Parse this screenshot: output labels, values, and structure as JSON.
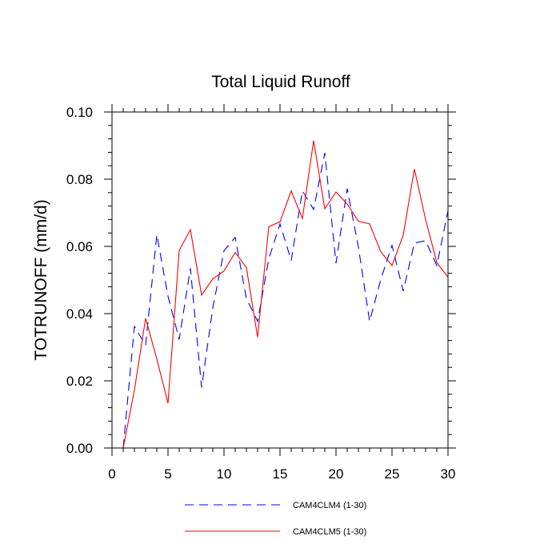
{
  "chart_data": {
    "type": "line",
    "title": "Total Liquid Runoff",
    "xlabel": "",
    "ylabel": "TOTRUNOFF  (mm/d)",
    "xlim": [
      0,
      30
    ],
    "ylim": [
      0.0,
      0.1
    ],
    "x_ticks": [
      0,
      5,
      10,
      15,
      20,
      25,
      30
    ],
    "x_tick_labels": [
      "0",
      "5",
      "10",
      "15",
      "20",
      "25",
      "30"
    ],
    "y_ticks": [
      0.0,
      0.02,
      0.04,
      0.06,
      0.08,
      0.1
    ],
    "y_tick_labels": [
      "0.00",
      "0.02",
      "0.04",
      "0.06",
      "0.08",
      "0.10"
    ],
    "grid": false,
    "legend_position": "bottom-center",
    "x": [
      1,
      2,
      3,
      4,
      5,
      6,
      7,
      8,
      9,
      10,
      11,
      12,
      13,
      14,
      15,
      16,
      17,
      18,
      19,
      20,
      21,
      22,
      23,
      24,
      25,
      26,
      27,
      28,
      29,
      30
    ],
    "series": [
      {
        "name": "CAM4CLM4 (1-30)",
        "color": "#0000ff",
        "dash": "dashed",
        "values": [
          0.0,
          0.0362,
          0.0306,
          0.0635,
          0.0452,
          0.0323,
          0.0535,
          0.018,
          0.0417,
          0.0587,
          0.0627,
          0.0445,
          0.0377,
          0.0563,
          0.0667,
          0.0558,
          0.0765,
          0.071,
          0.0878,
          0.055,
          0.0772,
          0.0598,
          0.0377,
          0.0502,
          0.0603,
          0.0467,
          0.061,
          0.0617,
          0.0543,
          0.0706
        ]
      },
      {
        "name": "CAM4CLM5 (1-30)",
        "color": "#ff0000",
        "dash": "solid",
        "values": [
          0.0,
          0.0172,
          0.0386,
          0.0265,
          0.0133,
          0.0588,
          0.065,
          0.0455,
          0.0503,
          0.0527,
          0.0582,
          0.0537,
          0.033,
          0.0659,
          0.0673,
          0.0765,
          0.0683,
          0.0915,
          0.0712,
          0.0762,
          0.0726,
          0.0675,
          0.0667,
          0.0584,
          0.0543,
          0.0633,
          0.083,
          0.068,
          0.0552,
          0.0508
        ]
      }
    ]
  }
}
